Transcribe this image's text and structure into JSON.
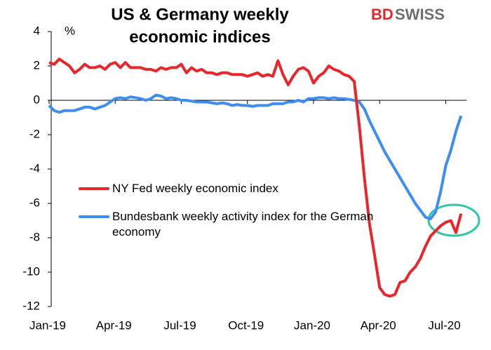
{
  "chart_data": {
    "type": "line",
    "title": [
      "US & Germany weekly",
      "economic indices"
    ],
    "logo": [
      "BD",
      "SWISS"
    ],
    "y_unit": "%",
    "categories": [
      "Jan-19",
      null,
      null,
      null,
      null,
      null,
      null,
      null,
      null,
      null,
      null,
      null,
      null,
      "Apr-19",
      null,
      null,
      null,
      null,
      null,
      null,
      null,
      null,
      null,
      null,
      null,
      null,
      "Jul-19",
      null,
      null,
      null,
      null,
      null,
      null,
      null,
      null,
      null,
      null,
      null,
      null,
      "Oct-19",
      null,
      null,
      null,
      null,
      null,
      null,
      null,
      null,
      null,
      null,
      null,
      null,
      "Jan-20",
      null,
      null,
      null,
      null,
      null,
      null,
      null,
      null,
      null,
      null,
      null,
      null,
      "Apr-20",
      null,
      null,
      null,
      null,
      null,
      null,
      null,
      null,
      null,
      null,
      null,
      null,
      "Jul-20",
      null,
      null,
      null
    ],
    "series": [
      {
        "name": "NY Fed weekly economic index",
        "color": "#e8262b",
        "values": [
          2.2,
          2.1,
          2.4,
          2.2,
          2.0,
          1.6,
          1.8,
          2.1,
          1.9,
          1.9,
          2.0,
          1.8,
          2.1,
          2.2,
          1.9,
          2.2,
          1.9,
          1.9,
          1.9,
          1.8,
          1.8,
          1.7,
          1.9,
          1.8,
          1.9,
          1.9,
          2.1,
          1.6,
          1.9,
          1.7,
          1.8,
          1.6,
          1.6,
          1.5,
          1.6,
          1.6,
          1.5,
          1.5,
          1.5,
          1.4,
          1.5,
          1.6,
          1.4,
          1.5,
          1.4,
          2.3,
          1.5,
          0.9,
          1.4,
          1.8,
          1.9,
          1.7,
          1.0,
          1.4,
          1.6,
          2.0,
          1.8,
          1.7,
          1.5,
          1.4,
          1.1,
          -1.5,
          -4.5,
          -7.2,
          -9.0,
          -10.9,
          -11.3,
          -11.4,
          -11.3,
          -10.6,
          -10.5,
          -10.0,
          -9.7,
          -9.2,
          -8.5,
          -7.9,
          -7.6,
          -7.3,
          -7.1,
          -7.0,
          -7.7,
          -6.6
        ]
      },
      {
        "name": "Bundesbank weekly activity index for the German economy",
        "color": "#3d8ef0",
        "values": [
          -0.3,
          -0.6,
          -0.7,
          -0.6,
          -0.6,
          -0.6,
          -0.5,
          -0.4,
          -0.4,
          -0.5,
          -0.4,
          -0.3,
          -0.1,
          0.1,
          0.15,
          0.1,
          0.2,
          0.15,
          0.1,
          0.0,
          0.1,
          0.3,
          0.25,
          0.1,
          0.15,
          0.1,
          0.0,
          0.0,
          -0.05,
          -0.1,
          -0.1,
          -0.1,
          -0.15,
          -0.2,
          -0.15,
          -0.2,
          -0.3,
          -0.25,
          -0.3,
          -0.3,
          -0.35,
          -0.3,
          -0.3,
          -0.3,
          -0.2,
          -0.2,
          -0.2,
          -0.1,
          -0.1,
          0.0,
          -0.1,
          0.1,
          0.1,
          0.15,
          0.15,
          0.1,
          0.15,
          0.1,
          0.1,
          0.05,
          0.0,
          -0.1,
          -0.5,
          -1.2,
          -1.8,
          -2.4,
          -3.0,
          -3.5,
          -4.0,
          -4.5,
          -5.0,
          -5.5,
          -6.0,
          -6.4,
          -6.8,
          -6.9,
          -6.5,
          -5.3,
          -3.8,
          -2.9,
          -1.8,
          -0.9
        ]
      }
    ],
    "ylim": [
      -12,
      4
    ],
    "yticks": [
      -12,
      -10,
      -8,
      -6,
      -4,
      -2,
      0,
      2,
      4
    ],
    "grid": false
  }
}
